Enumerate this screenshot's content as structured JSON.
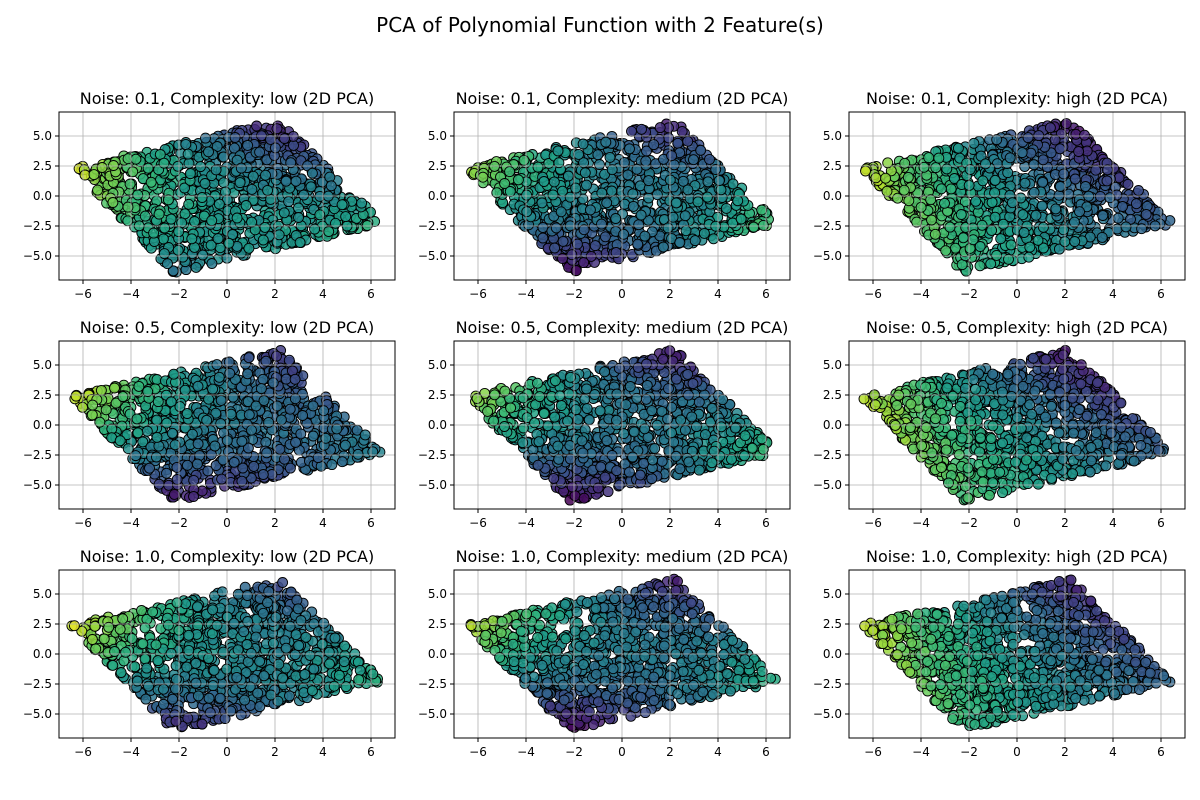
{
  "figure": {
    "title": "PCA of Polynomial Function with 2 Feature(s)"
  },
  "chart_data": [
    {
      "type": "scatter",
      "title": "Noise: 0.1, Complexity: low (2D PCA)",
      "noise": 0.1,
      "complexity": "low",
      "xlim": [
        -7,
        7
      ],
      "ylim": [
        -7,
        7
      ],
      "xticks": [
        -6,
        -4,
        -2,
        0,
        2,
        4,
        6
      ],
      "yticks": [
        -5.0,
        -2.5,
        0.0,
        2.5,
        5.0
      ],
      "grid": true,
      "region_corners": [
        [
          -6.5,
          2.4
        ],
        [
          2.2,
          6.3
        ],
        [
          6.5,
          -2.3
        ],
        [
          -2.2,
          -6.4
        ]
      ],
      "color_gradient": [
        0.95,
        0.05,
        0.65,
        0.4
      ],
      "colormap": "viridis"
    },
    {
      "type": "scatter",
      "title": "Noise: 0.1, Complexity: medium (2D PCA)",
      "noise": 0.1,
      "complexity": "medium",
      "xlim": [
        -7,
        7
      ],
      "ylim": [
        -7,
        7
      ],
      "xticks": [
        -6,
        -4,
        -2,
        0,
        2,
        4,
        6
      ],
      "yticks": [
        -5.0,
        -2.5,
        0.0,
        2.5,
        5.0
      ],
      "grid": true,
      "region_corners": [
        [
          -6.5,
          2.4
        ],
        [
          2.2,
          6.3
        ],
        [
          6.5,
          -2.3
        ],
        [
          -2.2,
          -6.4
        ]
      ],
      "color_gradient": [
        0.9,
        0.05,
        0.75,
        0.0
      ],
      "colormap": "viridis"
    },
    {
      "type": "scatter",
      "title": "Noise: 0.1, Complexity: high (2D PCA)",
      "noise": 0.1,
      "complexity": "high",
      "xlim": [
        -7,
        7
      ],
      "ylim": [
        -7,
        7
      ],
      "xticks": [
        -6,
        -4,
        -2,
        0,
        2,
        4,
        6
      ],
      "yticks": [
        -5.0,
        -2.5,
        0.0,
        2.5,
        5.0
      ],
      "grid": true,
      "region_corners": [
        [
          -6.5,
          2.4
        ],
        [
          2.2,
          6.3
        ],
        [
          6.5,
          -2.3
        ],
        [
          -2.2,
          -6.4
        ]
      ],
      "color_gradient": [
        0.9,
        0.05,
        0.3,
        0.65
      ],
      "colormap": "viridis"
    },
    {
      "type": "scatter",
      "title": "Noise: 0.5, Complexity: low (2D PCA)",
      "noise": 0.5,
      "complexity": "low",
      "xlim": [
        -7,
        7
      ],
      "ylim": [
        -7,
        7
      ],
      "xticks": [
        -6,
        -4,
        -2,
        0,
        2,
        4,
        6
      ],
      "yticks": [
        -5.0,
        -2.5,
        0.0,
        2.5,
        5.0
      ],
      "grid": true,
      "region_corners": [
        [
          -6.5,
          2.4
        ],
        [
          2.2,
          6.3
        ],
        [
          6.5,
          -2.3
        ],
        [
          -2.2,
          -6.4
        ]
      ],
      "color_gradient": [
        0.95,
        0.15,
        0.45,
        0.05
      ],
      "colormap": "viridis"
    },
    {
      "type": "scatter",
      "title": "Noise: 0.5, Complexity: medium (2D PCA)",
      "noise": 0.5,
      "complexity": "medium",
      "xlim": [
        -7,
        7
      ],
      "ylim": [
        -7,
        7
      ],
      "xticks": [
        -6,
        -4,
        -2,
        0,
        2,
        4,
        6
      ],
      "yticks": [
        -5.0,
        -2.5,
        0.0,
        2.5,
        5.0
      ],
      "grid": true,
      "region_corners": [
        [
          -6.5,
          2.4
        ],
        [
          2.2,
          6.3
        ],
        [
          6.5,
          -2.3
        ],
        [
          -2.2,
          -6.4
        ]
      ],
      "color_gradient": [
        0.9,
        0.05,
        0.7,
        0.0
      ],
      "colormap": "viridis"
    },
    {
      "type": "scatter",
      "title": "Noise: 0.5, Complexity: high (2D PCA)",
      "noise": 0.5,
      "complexity": "high",
      "xlim": [
        -7,
        7
      ],
      "ylim": [
        -7,
        7
      ],
      "xticks": [
        -6,
        -4,
        -2,
        0,
        2,
        4,
        6
      ],
      "yticks": [
        -5.0,
        -2.5,
        0.0,
        2.5,
        5.0
      ],
      "grid": true,
      "region_corners": [
        [
          -6.5,
          2.4
        ],
        [
          2.2,
          6.3
        ],
        [
          6.5,
          -2.3
        ],
        [
          -2.2,
          -6.4
        ]
      ],
      "color_gradient": [
        0.9,
        0.05,
        0.3,
        0.7
      ],
      "colormap": "viridis"
    },
    {
      "type": "scatter",
      "title": "Noise: 1.0, Complexity: low (2D PCA)",
      "noise": 1.0,
      "complexity": "low",
      "xlim": [
        -7,
        7
      ],
      "ylim": [
        -7,
        7
      ],
      "xticks": [
        -6,
        -4,
        -2,
        0,
        2,
        4,
        6
      ],
      "yticks": [
        -5.0,
        -2.5,
        0.0,
        2.5,
        5.0
      ],
      "grid": true,
      "region_corners": [
        [
          -6.5,
          2.4
        ],
        [
          2.2,
          6.3
        ],
        [
          6.5,
          -2.3
        ],
        [
          -2.2,
          -6.4
        ]
      ],
      "color_gradient": [
        0.95,
        0.2,
        0.65,
        0.1
      ],
      "colormap": "viridis"
    },
    {
      "type": "scatter",
      "title": "Noise: 1.0, Complexity: medium (2D PCA)",
      "noise": 1.0,
      "complexity": "medium",
      "xlim": [
        -7,
        7
      ],
      "ylim": [
        -7,
        7
      ],
      "xticks": [
        -6,
        -4,
        -2,
        0,
        2,
        4,
        6
      ],
      "yticks": [
        -5.0,
        -2.5,
        0.0,
        2.5,
        5.0
      ],
      "grid": true,
      "region_corners": [
        [
          -6.5,
          2.4
        ],
        [
          2.2,
          6.3
        ],
        [
          6.5,
          -2.3
        ],
        [
          -2.2,
          -6.4
        ]
      ],
      "color_gradient": [
        0.9,
        0.1,
        0.65,
        0.0
      ],
      "colormap": "viridis"
    },
    {
      "type": "scatter",
      "title": "Noise: 1.0, Complexity: high (2D PCA)",
      "noise": 1.0,
      "complexity": "high",
      "xlim": [
        -7,
        7
      ],
      "ylim": [
        -7,
        7
      ],
      "xticks": [
        -6,
        -4,
        -2,
        0,
        2,
        4,
        6
      ],
      "yticks": [
        -5.0,
        -2.5,
        0.0,
        2.5,
        5.0
      ],
      "grid": true,
      "region_corners": [
        [
          -6.5,
          2.4
        ],
        [
          2.2,
          6.3
        ],
        [
          6.5,
          -2.3
        ],
        [
          -2.2,
          -6.4
        ]
      ],
      "color_gradient": [
        0.9,
        0.1,
        0.3,
        0.65
      ],
      "colormap": "viridis"
    }
  ]
}
